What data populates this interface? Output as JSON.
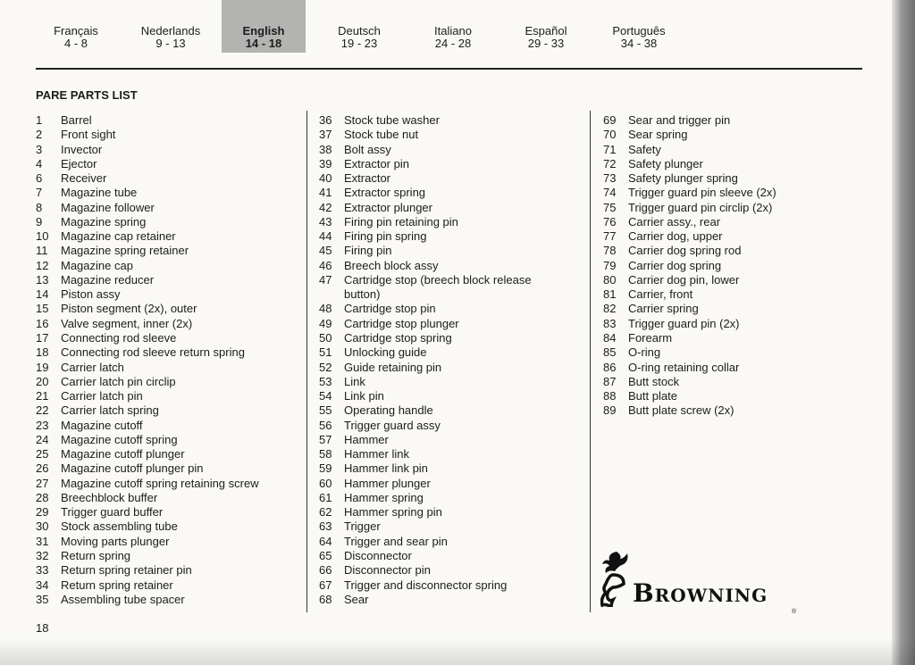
{
  "languages": [
    {
      "name": "Français",
      "pages": "4 - 8"
    },
    {
      "name": "Nederlands",
      "pages": "9 - 13"
    },
    {
      "name": "English",
      "pages": "14 - 18",
      "active": true
    },
    {
      "name": "Deutsch",
      "pages": "19 - 23"
    },
    {
      "name": "Italiano",
      "pages": "24 - 28"
    },
    {
      "name": "Español",
      "pages": "29 - 33"
    },
    {
      "name": "Português",
      "pages": "34 - 38"
    }
  ],
  "title": "PARE PARTS LIST",
  "columns": [
    [
      [
        "1",
        "Barrel"
      ],
      [
        "2",
        "Front sight"
      ],
      [
        "3",
        "Invector"
      ],
      [
        "4",
        "Ejector"
      ],
      [
        "6",
        "Receiver"
      ],
      [
        "7",
        "Magazine tube"
      ],
      [
        "8",
        "Magazine follower"
      ],
      [
        "9",
        "Magazine spring"
      ],
      [
        "10",
        "Magazine cap retainer"
      ],
      [
        "11",
        "Magazine spring retainer"
      ],
      [
        "12",
        "Magazine cap"
      ],
      [
        "13",
        "Magazine reducer"
      ],
      [
        "14",
        "Piston assy"
      ],
      [
        "15",
        "Piston segment (2x), outer"
      ],
      [
        "16",
        "Valve segment, inner (2x)"
      ],
      [
        "17",
        "Connecting rod sleeve"
      ],
      [
        "18",
        "Connecting rod sleeve return spring"
      ],
      [
        "19",
        "Carrier latch"
      ],
      [
        "20",
        "Carrier latch pin circlip"
      ],
      [
        "21",
        "Carrier latch pin"
      ],
      [
        "22",
        "Carrier latch spring"
      ],
      [
        "23",
        "Magazine cutoff"
      ],
      [
        "24",
        "Magazine cutoff spring"
      ],
      [
        "25",
        "Magazine cutoff plunger"
      ],
      [
        "26",
        "Magazine cutoff plunger pin"
      ],
      [
        "27",
        "Magazine cutoff spring retaining screw"
      ],
      [
        "28",
        "Breechblock buffer"
      ],
      [
        "29",
        "Trigger guard buffer"
      ],
      [
        "30",
        "Stock assembling tube"
      ],
      [
        "31",
        "Moving parts plunger"
      ],
      [
        "32",
        "Return spring"
      ],
      [
        "33",
        "Return spring retainer pin"
      ],
      [
        "34",
        "Return spring retainer"
      ],
      [
        "35",
        "Assembling tube spacer"
      ]
    ],
    [
      [
        "36",
        "Stock tube washer"
      ],
      [
        "37",
        "Stock tube nut"
      ],
      [
        "38",
        "Bolt assy"
      ],
      [
        "39",
        "Extractor pin"
      ],
      [
        "40",
        "Extractor"
      ],
      [
        "41",
        "Extractor spring"
      ],
      [
        "42",
        "Extractor plunger"
      ],
      [
        "43",
        "Firing pin retaining pin"
      ],
      [
        "44",
        "Firing pin spring"
      ],
      [
        "45",
        "Firing pin"
      ],
      [
        "46",
        "Breech block assy"
      ],
      [
        "47",
        "Cartridge stop (breech block release button)"
      ],
      [
        "48",
        "Cartridge stop pin"
      ],
      [
        "49",
        "Cartridge stop plunger"
      ],
      [
        "50",
        "Cartridge stop spring"
      ],
      [
        "51",
        "Unlocking guide"
      ],
      [
        "52",
        "Guide retaining pin"
      ],
      [
        "53",
        "Link"
      ],
      [
        "54",
        "Link pin"
      ],
      [
        "55",
        "Operating handle"
      ],
      [
        "56",
        "Trigger guard assy"
      ],
      [
        "57",
        "Hammer"
      ],
      [
        "58",
        "Hammer link"
      ],
      [
        "59",
        "Hammer link pin"
      ],
      [
        "60",
        "Hammer plunger"
      ],
      [
        "61",
        "Hammer spring"
      ],
      [
        "62",
        "Hammer spring pin"
      ],
      [
        "63",
        "Trigger"
      ],
      [
        "64",
        "Trigger and sear pin"
      ],
      [
        "65",
        "Disconnector"
      ],
      [
        "66",
        "Disconnector pin"
      ],
      [
        "67",
        "Trigger and disconnector spring"
      ],
      [
        "68",
        "Sear"
      ]
    ],
    [
      [
        "69",
        "Sear and trigger pin"
      ],
      [
        "70",
        "Sear spring"
      ],
      [
        "71",
        "Safety"
      ],
      [
        "72",
        "Safety plunger"
      ],
      [
        "73",
        "Safety plunger spring"
      ],
      [
        "74",
        "Trigger guard pin sleeve (2x)"
      ],
      [
        "75",
        "Trigger guard pin circlip (2x)"
      ],
      [
        "76",
        "Carrier assy., rear"
      ],
      [
        "77",
        "Carrier dog, upper"
      ],
      [
        "78",
        "Carrier dog spring rod"
      ],
      [
        "79",
        "Carrier dog spring"
      ],
      [
        "80",
        "Carrier dog pin, lower"
      ],
      [
        "81",
        "Carrier, front"
      ],
      [
        "82",
        "Carrier spring"
      ],
      [
        "83",
        "Trigger guard pin  (2x)"
      ],
      [
        "84",
        "Forearm"
      ],
      [
        "85",
        "O-ring"
      ],
      [
        "86",
        "O-ring retaining collar"
      ],
      [
        "87",
        "Butt stock"
      ],
      [
        "88",
        "Butt plate"
      ],
      [
        "89",
        "Butt plate screw (2x)"
      ]
    ]
  ],
  "page_number": "18",
  "logo": {
    "text": "Browning",
    "mark": "®"
  }
}
